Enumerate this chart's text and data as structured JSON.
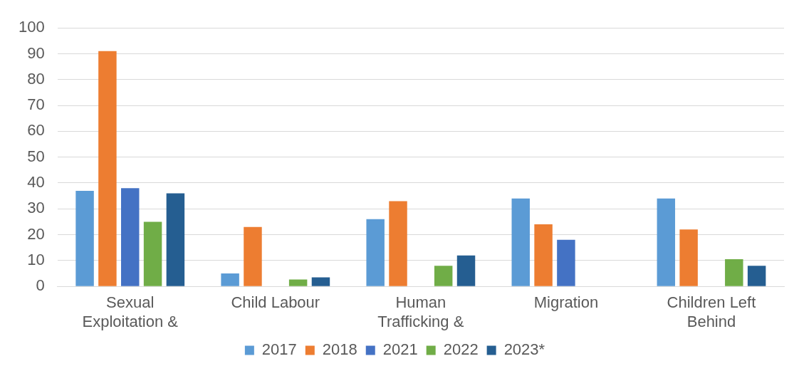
{
  "chart_data": {
    "type": "bar",
    "categories": [
      "Sexual Exploitation &",
      "Child Labour",
      "Human Trafficking &",
      "Migration",
      "Children Left Behind"
    ],
    "series": [
      {
        "name": "2017",
        "color": "#5b9bd5",
        "values": [
          37,
          5,
          26,
          34,
          34
        ]
      },
      {
        "name": "2018",
        "color": "#ed7d31",
        "values": [
          91,
          23,
          33,
          24,
          22
        ]
      },
      {
        "name": "2021",
        "color": "#4472c4",
        "values": [
          38,
          null,
          null,
          18,
          null
        ]
      },
      {
        "name": "2022",
        "color": "#70ad47",
        "values": [
          25,
          2.7,
          8,
          null,
          10.5
        ]
      },
      {
        "name": "2023*",
        "color": "#255e91",
        "values": [
          36,
          3.5,
          12,
          null,
          8
        ]
      }
    ],
    "ylim": [
      0,
      100
    ],
    "yticks": [
      0,
      10,
      20,
      30,
      40,
      50,
      60,
      70,
      80,
      90,
      100
    ],
    "grid": "y",
    "legend": "bottom"
  }
}
